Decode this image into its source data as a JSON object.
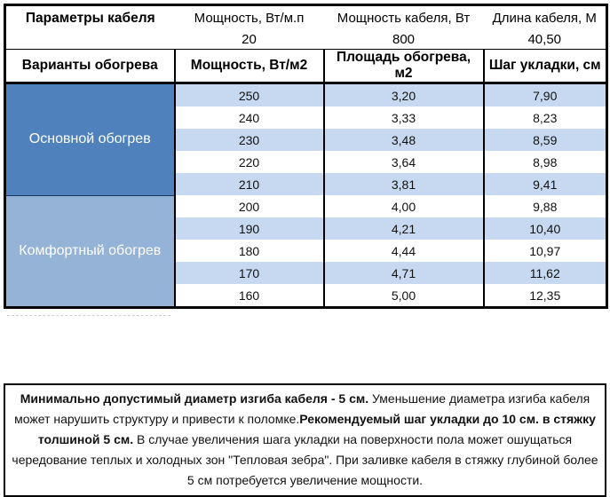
{
  "colors": {
    "section_primary": "#4f81bd",
    "section_comfort": "#95b3d7",
    "row_stripe": "#c7d9f0",
    "row_plain": "#ffffff",
    "border": "#000000"
  },
  "params": {
    "title": "Параметры кабеля",
    "columns": [
      "Мощность, Вт/м.п",
      "Мощность кабеля, Вт",
      "Длина кабеля, М"
    ],
    "values": [
      "20",
      "800",
      "40,50"
    ]
  },
  "variants": {
    "title": "Варианты обогрева",
    "columns": [
      "Мощность, Вт/м2",
      "Площадь обогрева, м2",
      "Шаг укладки, см"
    ],
    "sections": [
      {
        "label": "Основной обогрев",
        "color_key": "section_primary",
        "rows": [
          [
            "250",
            "3,20",
            "7,90"
          ],
          [
            "240",
            "3,33",
            "8,23"
          ],
          [
            "230",
            "3,48",
            "8,59"
          ],
          [
            "220",
            "3,64",
            "8,98"
          ],
          [
            "210",
            "3,81",
            "9,41"
          ]
        ]
      },
      {
        "label": "Комфортный обогрев",
        "color_key": "section_comfort",
        "rows": [
          [
            "200",
            "4,00",
            "9,88"
          ],
          [
            "190",
            "4,21",
            "10,40"
          ],
          [
            "180",
            "4,44",
            "10,97"
          ],
          [
            "170",
            "4,71",
            "11,62"
          ],
          [
            "160",
            "5,00",
            "12,35"
          ]
        ]
      }
    ]
  },
  "note": {
    "segments": [
      {
        "text": "Минимально допустимый диаметр изгиба кабеля - 5 см.",
        "bold": true
      },
      {
        "text": "  Уменьшение диаметра изгиба кабеля может нарушить структуру и привести к поломке.",
        "bold": false
      },
      {
        "text": "Рекомендуемый шаг укладки до 10 см. в стяжку толшиной 5 см.",
        "bold": true
      },
      {
        "text": " В  случае увеличения шага укладки на поверхности пола может ошущаться чередование теплых и холодных зон \"Тепловая зебра\". При заливке кабеля в стяжку глубиной более 5 см потребуется увеличение мощности.",
        "bold": false
      }
    ]
  }
}
